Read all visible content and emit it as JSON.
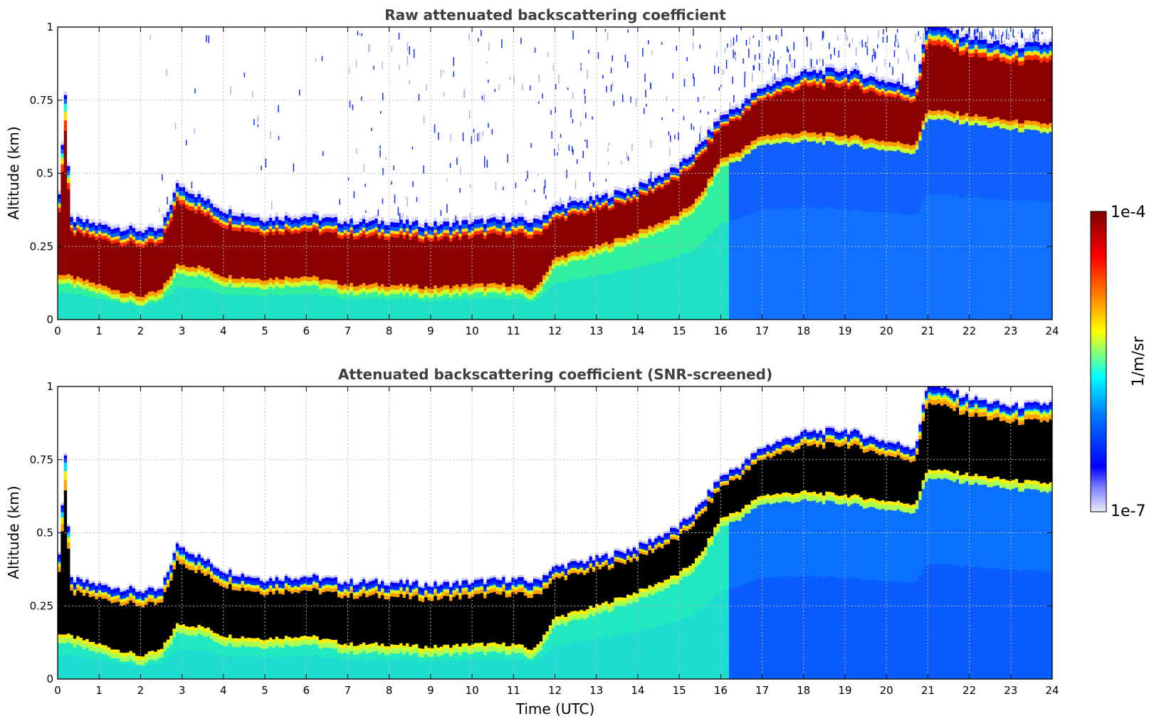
{
  "chart_data": [
    {
      "type": "heatmap",
      "title": "Raw attenuated backscattering coefficient",
      "xlabel": "",
      "ylabel": "Altitude (km)",
      "xlim": [
        0,
        24
      ],
      "ylim": [
        0,
        1
      ],
      "x_ticks": [
        0,
        1,
        2,
        3,
        4,
        5,
        6,
        7,
        8,
        9,
        10,
        11,
        12,
        13,
        14,
        15,
        16,
        17,
        18,
        19,
        20,
        21,
        22,
        23,
        24
      ],
      "y_ticks": [
        0,
        0.25,
        0.5,
        0.75,
        1
      ],
      "y_tick_labels": [
        "0",
        "0.25",
        "0.5",
        "0.75",
        "1"
      ],
      "grid": true,
      "screened": false,
      "layer_top_km": {
        "x": [
          0,
          0.2,
          0.3,
          1,
          2,
          2.5,
          2.9,
          3.5,
          4,
          5,
          6,
          7,
          8,
          9,
          10,
          11,
          11.5,
          12,
          13,
          14,
          15,
          15.5,
          16,
          16.5,
          17,
          18,
          19,
          20,
          20.7,
          21,
          22,
          23,
          23.9
        ],
        "y": [
          0.34,
          0.78,
          0.33,
          0.31,
          0.29,
          0.29,
          0.45,
          0.4,
          0.36,
          0.33,
          0.34,
          0.32,
          0.32,
          0.31,
          0.32,
          0.33,
          0.32,
          0.37,
          0.4,
          0.44,
          0.51,
          0.58,
          0.68,
          0.72,
          0.78,
          0.83,
          0.84,
          0.8,
          0.78,
          1.0,
          0.95,
          0.92,
          0.93
        ]
      },
      "layer_bottom_km": {
        "x": [
          0,
          1,
          2,
          2.5,
          2.9,
          3.5,
          4,
          5,
          6,
          7,
          8,
          9,
          10,
          11,
          11.5,
          12,
          13,
          14,
          15,
          15.5,
          16,
          16.5,
          17,
          18,
          19,
          20,
          20.7,
          21,
          22,
          23,
          23.9
        ],
        "y": [
          0.16,
          0.12,
          0.08,
          0.1,
          0.19,
          0.18,
          0.15,
          0.14,
          0.15,
          0.12,
          0.12,
          0.11,
          0.12,
          0.12,
          0.1,
          0.21,
          0.25,
          0.3,
          0.36,
          0.42,
          0.55,
          0.58,
          0.63,
          0.64,
          0.63,
          0.61,
          0.6,
          0.72,
          0.7,
          0.68,
          0.67
        ]
      }
    },
    {
      "type": "heatmap",
      "title": "Attenuated backscattering coefficient (SNR-screened)",
      "xlabel": "Time (UTC)",
      "ylabel": "Altitude (km)",
      "xlim": [
        0,
        24
      ],
      "ylim": [
        0,
        1
      ],
      "x_ticks": [
        0,
        1,
        2,
        3,
        4,
        5,
        6,
        7,
        8,
        9,
        10,
        11,
        12,
        13,
        14,
        15,
        16,
        17,
        18,
        19,
        20,
        21,
        22,
        23,
        24
      ],
      "y_ticks": [
        0,
        0.25,
        0.5,
        0.75,
        1
      ],
      "y_tick_labels": [
        "0",
        "0.25",
        "0.5",
        "0.75",
        "1"
      ],
      "grid": true,
      "screened": true
    }
  ],
  "colorbar": {
    "label": "1/m/sr",
    "max_label": "1e-4",
    "min_label": "1e-7",
    "range": [
      1e-07,
      0.0001
    ],
    "scale": "log",
    "colormap": [
      "#e8e8f8",
      "#0000ff",
      "#00a0ff",
      "#00ffff",
      "#ffff00",
      "#ff8000",
      "#ff0000",
      "#800000"
    ]
  },
  "colors": {
    "saturated_screened": "#000000",
    "layer_core": "#8b0000",
    "background_aerosol": "#20e0c0"
  }
}
